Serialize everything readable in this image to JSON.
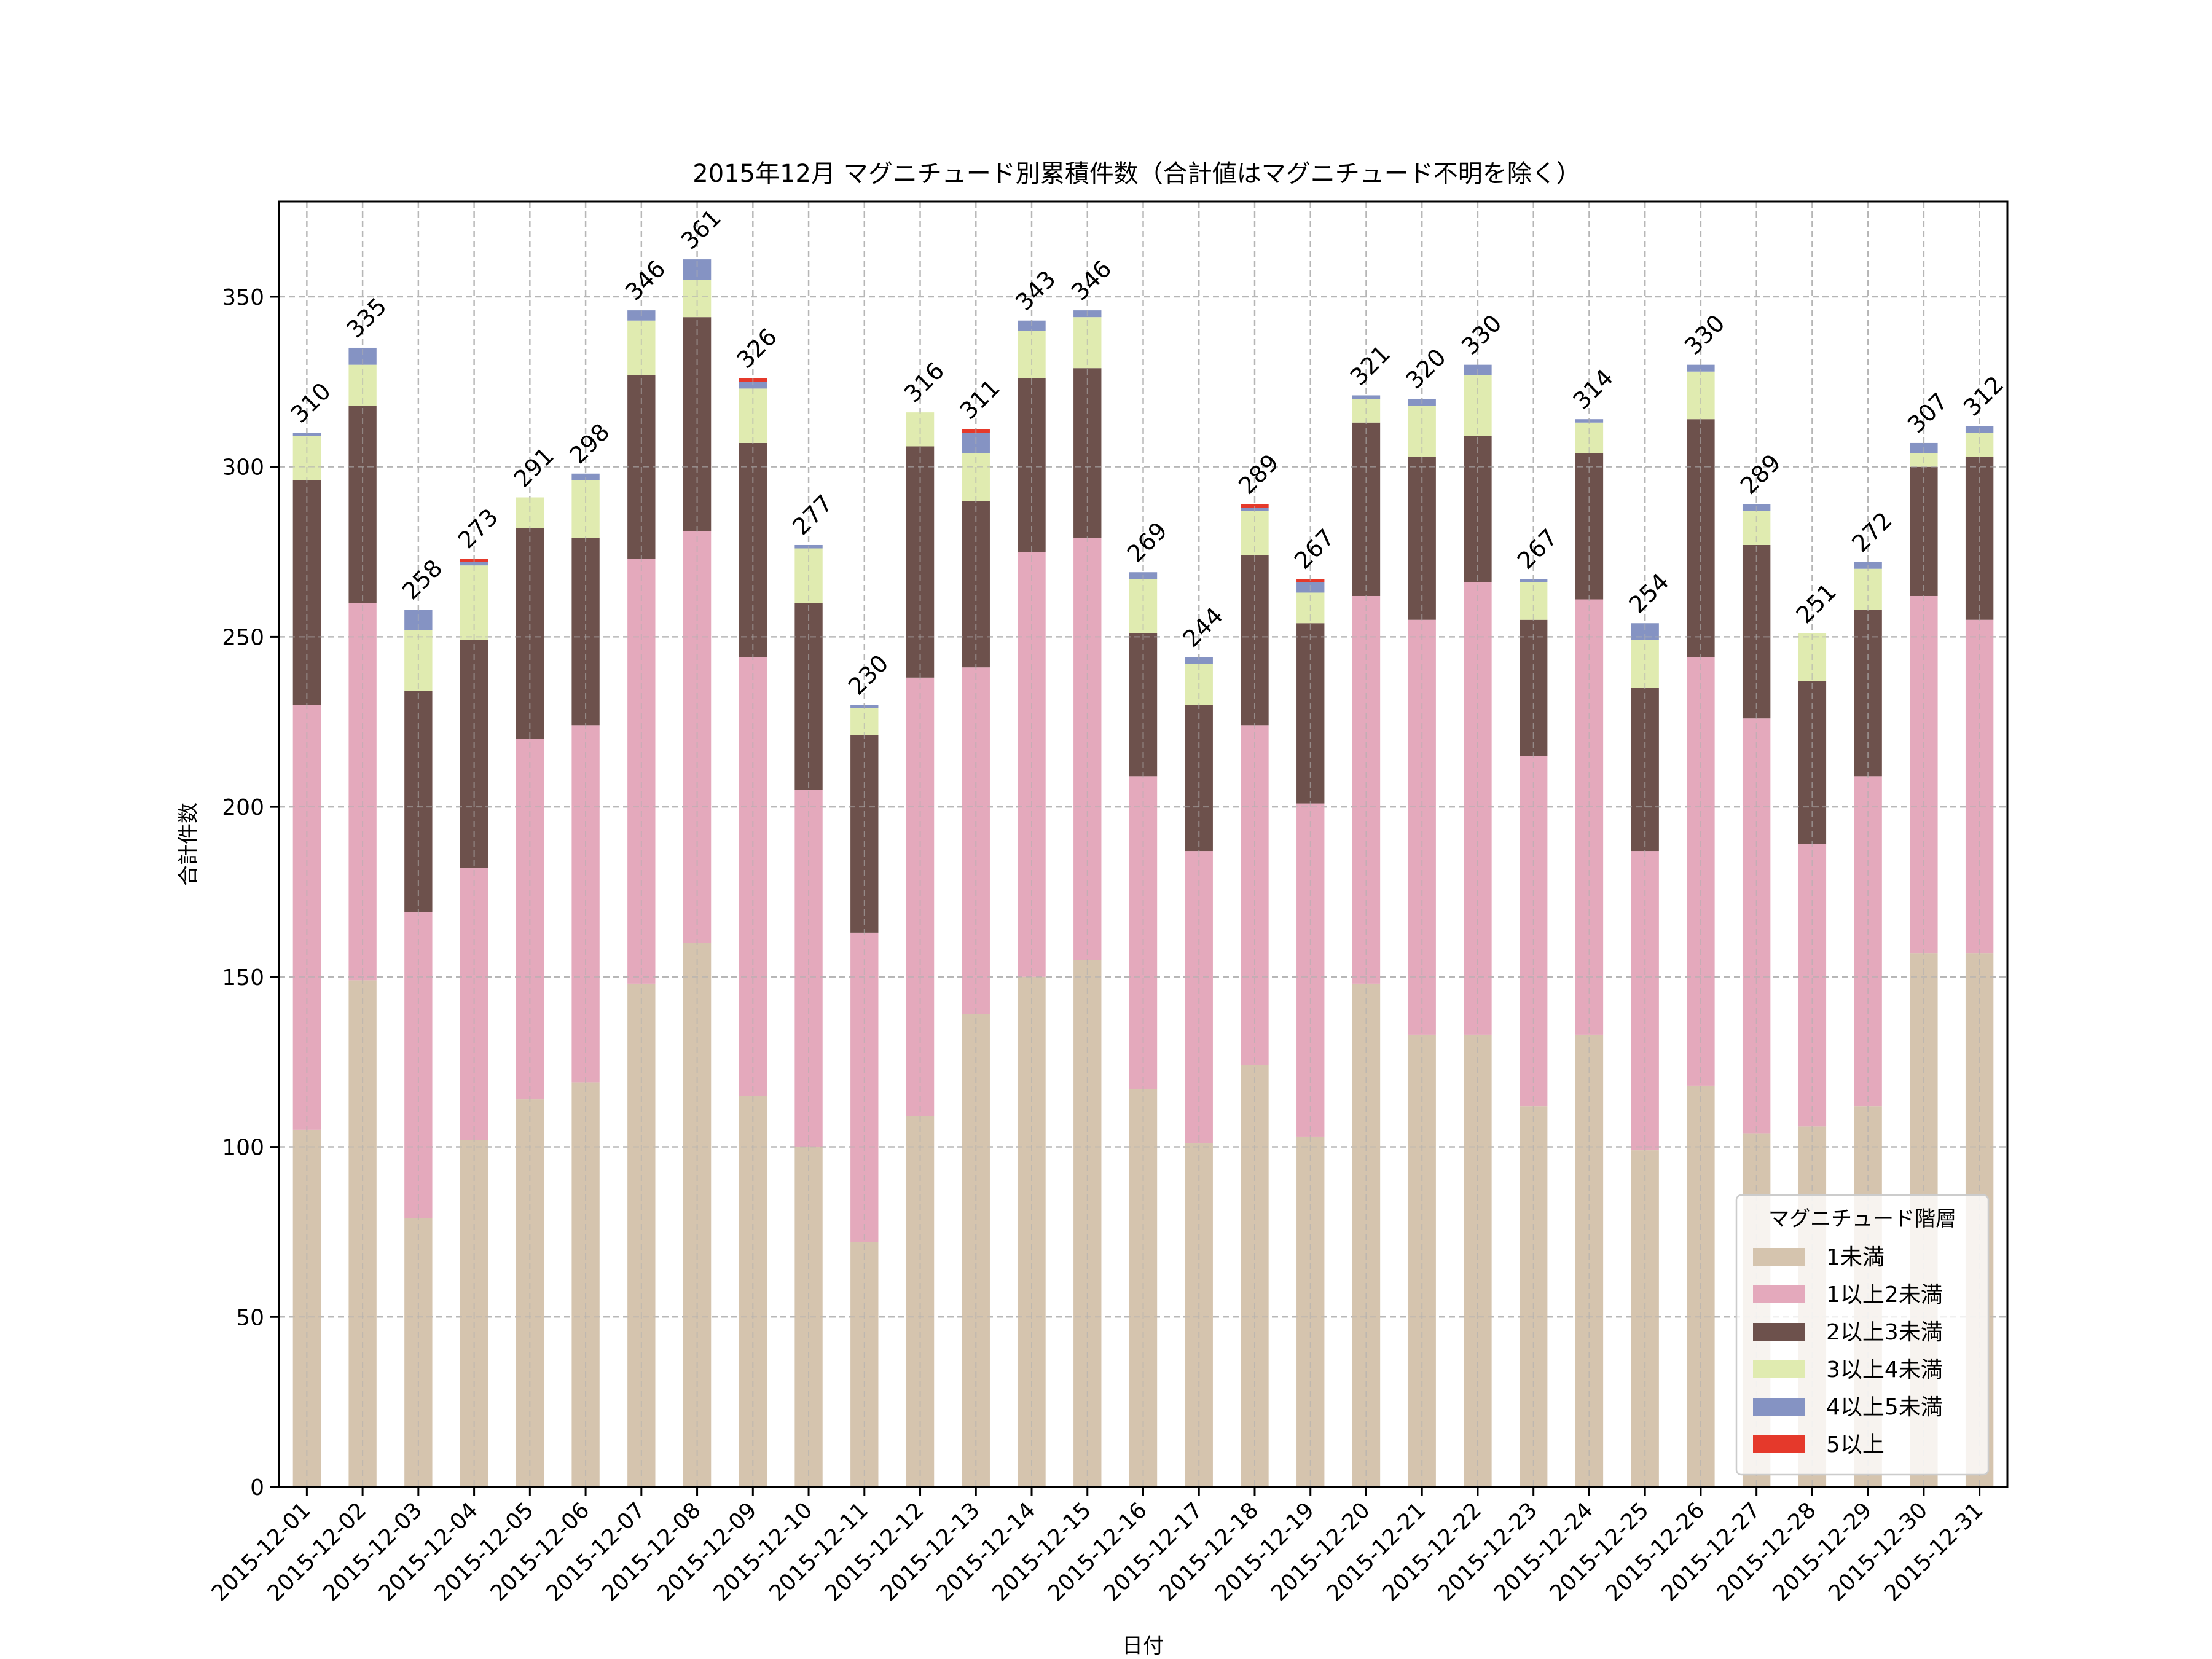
{
  "chart_data": {
    "type": "bar",
    "stacked": true,
    "title": "2015年12月 マグニチュード別累積件数（合計値はマグニチュード不明を除く）",
    "xlabel": "日付",
    "ylabel": "合計件数",
    "ylim": [
      0,
      378
    ],
    "yticks": [
      0,
      50,
      100,
      150,
      200,
      250,
      300,
      350
    ],
    "grid": true,
    "legend": {
      "title": "マグニチュード階層",
      "position": "bottom-right"
    },
    "categories": [
      "2015-12-01",
      "2015-12-02",
      "2015-12-03",
      "2015-12-04",
      "2015-12-05",
      "2015-12-06",
      "2015-12-07",
      "2015-12-08",
      "2015-12-09",
      "2015-12-10",
      "2015-12-11",
      "2015-12-12",
      "2015-12-13",
      "2015-12-14",
      "2015-12-15",
      "2015-12-16",
      "2015-12-17",
      "2015-12-18",
      "2015-12-19",
      "2015-12-20",
      "2015-12-21",
      "2015-12-22",
      "2015-12-23",
      "2015-12-24",
      "2015-12-25",
      "2015-12-26",
      "2015-12-27",
      "2015-12-28",
      "2015-12-29",
      "2015-12-30",
      "2015-12-31"
    ],
    "series": [
      {
        "name": "1未満",
        "color": "#d5c4ae",
        "values": [
          105,
          149,
          79,
          102,
          114,
          119,
          148,
          160,
          115,
          100,
          72,
          109,
          139,
          150,
          155,
          117,
          101,
          124,
          103,
          148,
          133,
          133,
          112,
          133,
          99,
          118,
          104,
          106,
          112,
          157,
          157
        ]
      },
      {
        "name": "1以上2未満",
        "color": "#e4a9bc",
        "values": [
          125,
          111,
          90,
          80,
          106,
          105,
          125,
          121,
          129,
          105,
          91,
          129,
          102,
          125,
          124,
          92,
          86,
          100,
          98,
          114,
          122,
          133,
          103,
          128,
          88,
          126,
          122,
          83,
          97,
          105,
          98
        ]
      },
      {
        "name": "2以上3未満",
        "color": "#6d514c",
        "values": [
          66,
          58,
          65,
          67,
          62,
          55,
          54,
          63,
          63,
          55,
          58,
          68,
          49,
          51,
          50,
          42,
          43,
          50,
          53,
          51,
          48,
          43,
          40,
          43,
          48,
          70,
          51,
          48,
          49,
          38,
          48
        ]
      },
      {
        "name": "3以上4未満",
        "color": "#e0ebb0",
        "values": [
          13,
          12,
          18,
          22,
          9,
          17,
          16,
          11,
          16,
          16,
          8,
          10,
          14,
          14,
          15,
          16,
          12,
          13,
          9,
          7,
          15,
          18,
          11,
          9,
          14,
          14,
          10,
          14,
          12,
          4,
          7
        ]
      },
      {
        "name": "4以上5未満",
        "color": "#8593c3",
        "values": [
          1,
          5,
          6,
          1,
          0,
          2,
          3,
          6,
          2,
          1,
          1,
          0,
          6,
          3,
          2,
          2,
          2,
          1,
          3,
          1,
          2,
          3,
          1,
          1,
          5,
          2,
          2,
          0,
          2,
          3,
          2
        ]
      },
      {
        "name": "5以上",
        "color": "#e5392b",
        "values": [
          0,
          0,
          0,
          1,
          0,
          0,
          0,
          0,
          1,
          0,
          0,
          0,
          1,
          0,
          0,
          0,
          0,
          1,
          1,
          0,
          0,
          0,
          0,
          0,
          0,
          0,
          0,
          0,
          0,
          0,
          0
        ]
      }
    ],
    "totals": [
      310,
      335,
      258,
      273,
      291,
      298,
      346,
      361,
      326,
      277,
      230,
      316,
      311,
      343,
      346,
      269,
      244,
      289,
      267,
      321,
      320,
      330,
      267,
      314,
      254,
      330,
      289,
      251,
      272,
      307,
      312
    ]
  }
}
